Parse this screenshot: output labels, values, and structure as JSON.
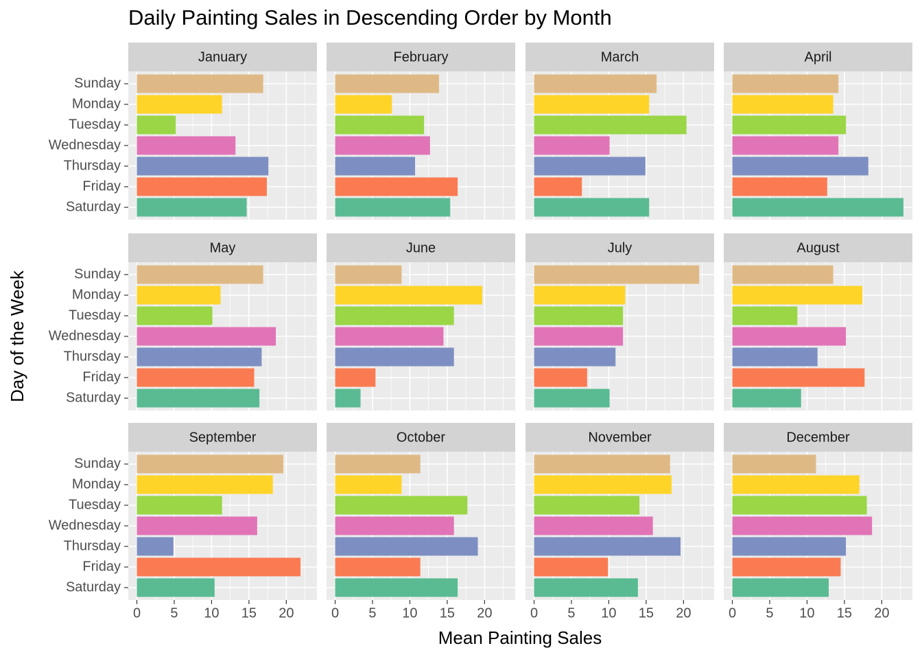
{
  "chart_data": {
    "type": "bar",
    "orientation": "horizontal",
    "title": "Daily Painting Sales in Descending Order by Month",
    "x_label": "Mean Painting Sales",
    "y_label": "Day of the Week",
    "categories": [
      "Sunday",
      "Monday",
      "Tuesday",
      "Wednesday",
      "Thursday",
      "Friday",
      "Saturday"
    ],
    "colors": [
      "#dfb985",
      "#fed429",
      "#9ad645",
      "#e174b7",
      "#7d8fc2",
      "#fa7b52",
      "#5abb92"
    ],
    "xlim": [
      -1.15,
      24.1
    ],
    "xticks": [
      0,
      5,
      10,
      15,
      20
    ],
    "minor_xticks": [
      2.5,
      7.5,
      12.5,
      17.5,
      22.5
    ],
    "grid": true,
    "panels": [
      {
        "name": "January",
        "values": [
          16.9,
          11.4,
          5.2,
          13.2,
          17.6,
          17.4,
          14.7
        ]
      },
      {
        "name": "February",
        "values": [
          13.9,
          7.6,
          11.9,
          12.7,
          10.7,
          16.4,
          15.4
        ]
      },
      {
        "name": "March",
        "values": [
          16.4,
          15.4,
          20.4,
          10.1,
          14.9,
          6.4,
          15.4
        ]
      },
      {
        "name": "April",
        "values": [
          14.2,
          13.5,
          15.2,
          14.2,
          18.2,
          12.7,
          22.9
        ]
      },
      {
        "name": "May",
        "values": [
          16.9,
          11.2,
          10.1,
          18.6,
          16.7,
          15.7,
          16.4
        ]
      },
      {
        "name": "June",
        "values": [
          8.9,
          19.7,
          15.9,
          14.5,
          15.9,
          5.4,
          3.4
        ]
      },
      {
        "name": "July",
        "values": [
          22.1,
          12.2,
          11.9,
          11.9,
          10.9,
          7.1,
          10.1
        ]
      },
      {
        "name": "August",
        "values": [
          13.5,
          17.4,
          8.7,
          15.2,
          11.4,
          17.7,
          9.2
        ]
      },
      {
        "name": "September",
        "values": [
          19.6,
          18.2,
          11.4,
          16.1,
          4.9,
          21.9,
          10.4
        ]
      },
      {
        "name": "October",
        "values": [
          11.4,
          8.9,
          17.7,
          15.9,
          19.1,
          11.4,
          16.4
        ]
      },
      {
        "name": "November",
        "values": [
          18.2,
          18.4,
          14.1,
          15.9,
          19.6,
          9.9,
          13.9
        ]
      },
      {
        "name": "December",
        "values": [
          11.2,
          17.0,
          18.0,
          18.7,
          15.2,
          14.5,
          12.9
        ]
      }
    ]
  }
}
